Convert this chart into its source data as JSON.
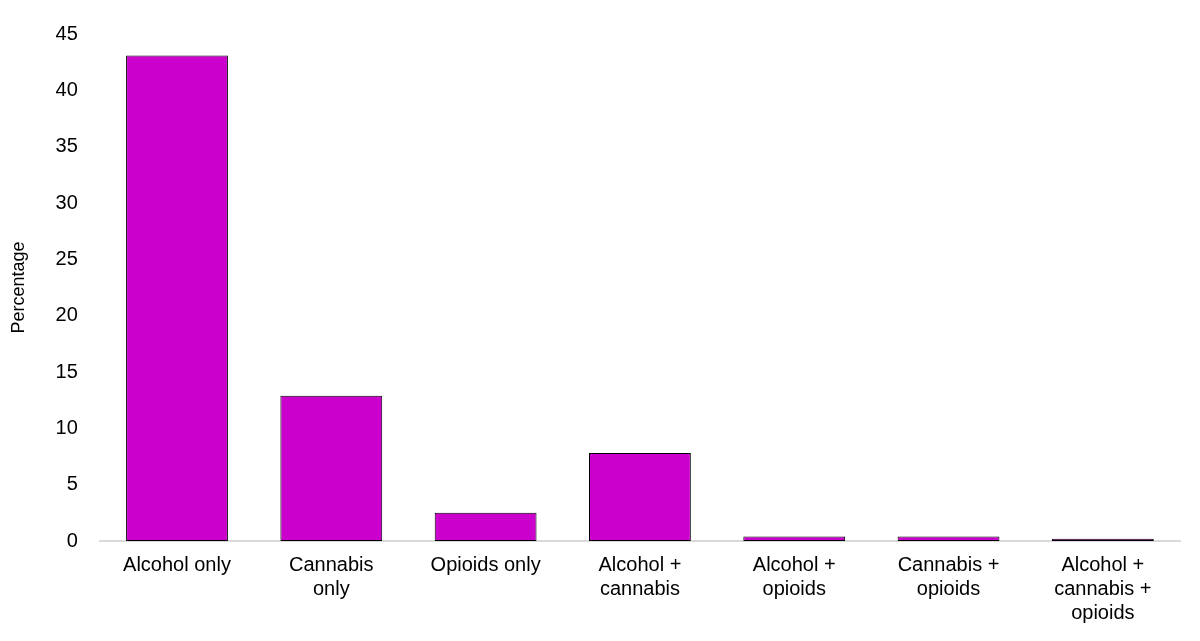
{
  "chart_data": {
    "type": "bar",
    "ylabel": "Percentage",
    "categories": [
      "Alcohol only",
      "Cannabis only",
      "Opioids only",
      "Alcohol + cannabis",
      "Alcohol + opioids",
      "Cannabis + opioids",
      "Alcohol + cannabis + opioids"
    ],
    "values": [
      43.1,
      12.9,
      2.5,
      7.8,
      0.4,
      0.4,
      0.2
    ],
    "color": "#cc00cc",
    "ylim": [
      0,
      45
    ],
    "yticks": [
      0,
      5,
      10,
      15,
      20,
      25,
      30,
      35,
      40,
      45
    ],
    "grid": false,
    "legend": false
  }
}
